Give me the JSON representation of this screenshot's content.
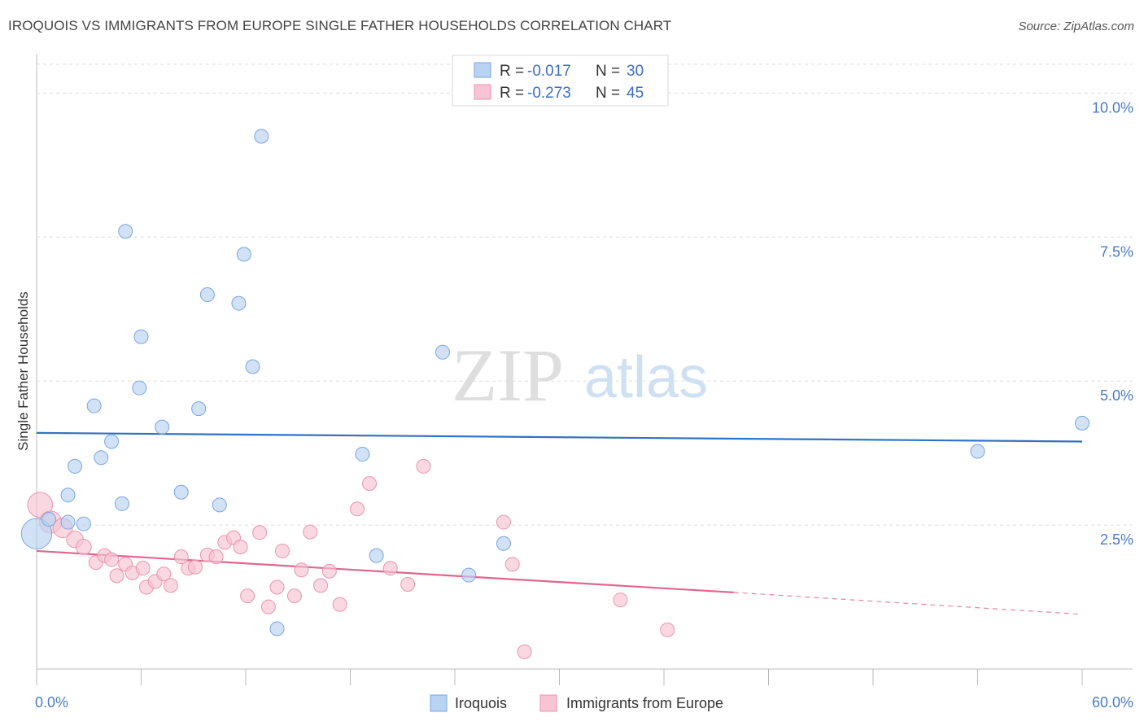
{
  "title": "IROQUOIS VS IMMIGRANTS FROM EUROPE SINGLE FATHER HOUSEHOLDS CORRELATION CHART",
  "source": "Source: ZipAtlas.com",
  "watermark": {
    "zip": "ZIP",
    "atlas": "atlas"
  },
  "legend": {
    "r_label": "R =",
    "n_label": "N =",
    "rows": [
      {
        "r": "-0.017",
        "n": "30"
      },
      {
        "r": "-0.273",
        "n": "45"
      }
    ]
  },
  "colors": {
    "blue_fill": "#b9d3f2",
    "blue_stroke": "#7aa6dc",
    "blue_line": "#2f72c8",
    "pink_fill": "#f8c3d3",
    "pink_stroke": "#e895b0",
    "pink_line": "#e06690",
    "tick_text": "#4a7cc4"
  },
  "chart_data": {
    "type": "scatter",
    "title": "IROQUOIS VS IMMIGRANTS FROM EUROPE SINGLE FATHER HOUSEHOLDS CORRELATION CHART",
    "xlabel": "",
    "ylabel": "Single Father Households",
    "xlim": [
      0,
      60
    ],
    "ylim": [
      0,
      10.5
    ],
    "x_tick_labels": [
      "0.0%",
      "60.0%"
    ],
    "y_ticks": [
      2.5,
      5.0,
      7.5,
      10.0
    ],
    "y_tick_labels": [
      "2.5%",
      "5.0%",
      "7.5%",
      "10.0%"
    ],
    "grid": "horizontal dashed",
    "legend_position": "top-center",
    "series": [
      {
        "name": "Iroquois",
        "color": "blue",
        "trend": {
          "x": [
            0,
            60
          ],
          "y": [
            4.1,
            3.95
          ],
          "dashed_from": null
        },
        "points": [
          [
            0.0,
            2.35,
            2.2
          ],
          [
            0.7,
            2.6,
            1
          ],
          [
            1.8,
            2.55,
            1
          ],
          [
            1.8,
            3.02,
            1
          ],
          [
            2.2,
            3.52,
            1
          ],
          [
            2.7,
            2.52,
            1
          ],
          [
            3.3,
            4.57,
            1
          ],
          [
            3.7,
            3.67,
            1
          ],
          [
            4.3,
            3.95,
            1
          ],
          [
            4.9,
            2.87,
            1
          ],
          [
            5.1,
            7.6,
            1
          ],
          [
            5.9,
            4.88,
            1
          ],
          [
            6.0,
            5.77,
            1
          ],
          [
            7.2,
            4.2,
            1
          ],
          [
            8.3,
            3.07,
            1
          ],
          [
            9.3,
            4.52,
            1
          ],
          [
            9.8,
            6.5,
            1
          ],
          [
            10.5,
            2.85,
            1
          ],
          [
            11.6,
            6.35,
            1
          ],
          [
            11.9,
            7.2,
            1
          ],
          [
            12.4,
            5.25,
            1
          ],
          [
            12.9,
            9.25,
            1
          ],
          [
            13.8,
            0.7,
            1
          ],
          [
            18.7,
            3.73,
            1
          ],
          [
            19.5,
            1.97,
            1
          ],
          [
            23.3,
            5.5,
            1
          ],
          [
            24.8,
            1.63,
            1
          ],
          [
            26.8,
            2.18,
            1
          ],
          [
            54.0,
            3.78,
            1
          ],
          [
            60.0,
            4.27,
            1
          ]
        ]
      },
      {
        "name": "Immigrants from Europe",
        "color": "pink",
        "trend": {
          "x": [
            0,
            40,
            60
          ],
          "y": [
            2.05,
            1.33,
            0.95
          ],
          "dashed_from": 40
        },
        "points": [
          [
            0.2,
            2.85,
            1.8
          ],
          [
            0.8,
            2.55,
            1.6
          ],
          [
            1.5,
            2.45,
            1.4
          ],
          [
            2.2,
            2.25,
            1.2
          ],
          [
            2.7,
            2.12,
            1.1
          ],
          [
            3.4,
            1.85,
            1
          ],
          [
            3.9,
            1.97,
            1
          ],
          [
            4.3,
            1.9,
            1
          ],
          [
            4.6,
            1.62,
            1
          ],
          [
            5.1,
            1.82,
            1
          ],
          [
            5.5,
            1.67,
            1
          ],
          [
            6.1,
            1.75,
            1
          ],
          [
            6.3,
            1.42,
            1
          ],
          [
            6.8,
            1.52,
            1
          ],
          [
            7.3,
            1.65,
            1
          ],
          [
            7.7,
            1.45,
            1
          ],
          [
            8.3,
            1.95,
            1
          ],
          [
            8.7,
            1.75,
            1
          ],
          [
            9.1,
            1.77,
            1
          ],
          [
            9.8,
            1.98,
            1
          ],
          [
            10.3,
            1.95,
            1
          ],
          [
            10.8,
            2.2,
            1
          ],
          [
            11.3,
            2.28,
            1
          ],
          [
            11.7,
            2.12,
            1
          ],
          [
            12.1,
            1.27,
            1
          ],
          [
            12.8,
            2.37,
            1
          ],
          [
            13.3,
            1.08,
            1
          ],
          [
            13.8,
            1.42,
            1
          ],
          [
            14.1,
            2.05,
            1
          ],
          [
            14.8,
            1.27,
            1
          ],
          [
            15.2,
            1.72,
            1
          ],
          [
            15.7,
            2.38,
            1
          ],
          [
            16.3,
            1.45,
            1
          ],
          [
            16.8,
            1.7,
            1
          ],
          [
            17.4,
            1.12,
            1
          ],
          [
            18.4,
            2.78,
            1
          ],
          [
            19.1,
            3.22,
            1
          ],
          [
            20.3,
            1.75,
            1
          ],
          [
            21.3,
            1.47,
            1
          ],
          [
            22.2,
            3.52,
            1
          ],
          [
            26.8,
            2.55,
            1
          ],
          [
            27.3,
            1.82,
            1
          ],
          [
            28.0,
            0.3,
            1
          ],
          [
            33.5,
            1.2,
            1
          ],
          [
            36.2,
            0.68,
            1
          ]
        ]
      }
    ]
  },
  "bottom_legend": [
    {
      "label": "Iroquois",
      "color": "blue"
    },
    {
      "label": "Immigrants from Europe",
      "color": "pink"
    }
  ]
}
